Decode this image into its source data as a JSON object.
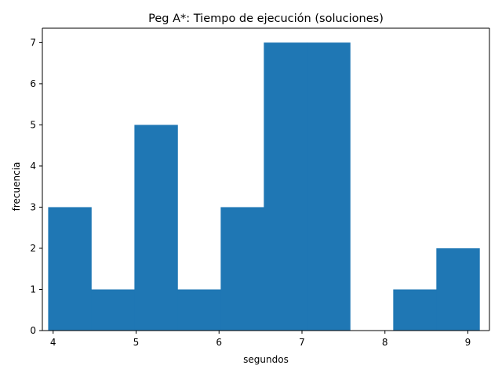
{
  "chart_data": {
    "type": "bar",
    "title": "Peg A*: Tiempo de ejecución (soluciones)",
    "xlabel": "segundos",
    "ylabel": "frecuencia",
    "xlim": [
      3.87,
      9.26
    ],
    "ylim": [
      0,
      7.35
    ],
    "xticks": [
      "4",
      "5",
      "6",
      "7",
      "8",
      "9"
    ],
    "yticks": [
      "0",
      "1",
      "2",
      "3",
      "4",
      "5",
      "6",
      "7"
    ],
    "bin_edges": [
      3.94,
      4.46,
      4.98,
      5.5,
      6.02,
      6.54,
      7.06,
      7.58,
      8.1,
      8.62,
      9.14
    ],
    "values": [
      3,
      1,
      5,
      1,
      3,
      7,
      7,
      0,
      1,
      2
    ],
    "grid": false,
    "colors": {
      "bar": "#1f77b4",
      "axis": "#000000",
      "background": "#ffffff"
    }
  }
}
